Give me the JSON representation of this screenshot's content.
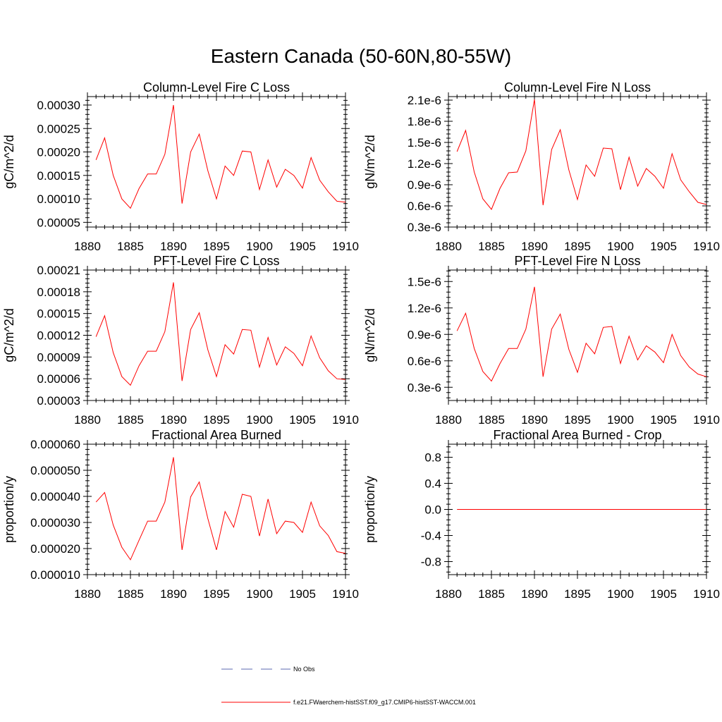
{
  "title": "Eastern Canada (50-60N,80-55W)",
  "colors": {
    "series": "#ff0000",
    "no_obs": "#5b6ab0",
    "axis": "#000000"
  },
  "legend": {
    "no_obs": "No Obs",
    "model": "f.e21.FWaerchem-histSST.f09_g17.CMIP6-histSST-WACCM.001"
  },
  "chart_data": [
    {
      "type": "line",
      "title": "Column-Level Fire C Loss",
      "ylabel": "gC/m^2/d",
      "xlim": [
        1880,
        1910
      ],
      "ylim": [
        4e-05,
        0.000318
      ],
      "xticks": [
        1880,
        1885,
        1890,
        1895,
        1900,
        1905,
        1910
      ],
      "xtick_labels": [
        "1880",
        "1885",
        "1890",
        "1895",
        "1900",
        "1905",
        "1910"
      ],
      "yticks": [
        5e-05,
        0.0001,
        0.00015,
        0.0002,
        0.00025,
        0.0003
      ],
      "ytick_labels": [
        "0.00005",
        "0.00010",
        "0.00015",
        "0.00020",
        "0.00025",
        "0.00030"
      ],
      "series": [
        {
          "x": [
            1881,
            1882,
            1883,
            1884,
            1885,
            1886,
            1887,
            1888,
            1889,
            1890,
            1891,
            1892,
            1893,
            1894,
            1895,
            1896,
            1897,
            1898,
            1899,
            1900,
            1901,
            1902,
            1903,
            1904,
            1905,
            1906,
            1907,
            1908,
            1909,
            1910
          ],
          "values": [
            0.000183,
            0.00023,
            0.00015,
            0.0001,
            8e-05,
            0.000122,
            0.000153,
            0.000153,
            0.000195,
            0.0003,
            9e-05,
            0.0002,
            0.000238,
            0.00016,
            0.0001,
            0.00017,
            0.00015,
            0.000202,
            0.0002,
            0.00012,
            0.000183,
            0.000125,
            0.000163,
            0.00015,
            0.000123,
            0.000188,
            0.00014,
            0.000115,
            9.5e-05,
            9.3e-05
          ]
        }
      ]
    },
    {
      "type": "line",
      "title": "Column-Level Fire N Loss",
      "ylabel": "gN/m^2/d",
      "xlim": [
        1880,
        1910
      ],
      "ylim": [
        3e-07,
        2.15e-06
      ],
      "xticks": [
        1880,
        1885,
        1890,
        1895,
        1900,
        1905,
        1910
      ],
      "xtick_labels": [
        "1880",
        "1885",
        "1890",
        "1895",
        "1900",
        "1905",
        "1910"
      ],
      "yticks": [
        3e-07,
        6e-07,
        9e-07,
        1.2e-06,
        1.5e-06,
        1.8e-06,
        2.1e-06
      ],
      "ytick_labels": [
        "0.3e-6",
        "0.6e-6",
        "0.9e-6",
        "1.2e-6",
        "1.5e-6",
        "1.8e-6",
        "2.1e-6"
      ],
      "series": [
        {
          "x": [
            1881,
            1882,
            1883,
            1884,
            1885,
            1886,
            1887,
            1888,
            1889,
            1890,
            1891,
            1892,
            1893,
            1894,
            1895,
            1896,
            1897,
            1898,
            1899,
            1900,
            1901,
            1902,
            1903,
            1904,
            1905,
            1906,
            1907,
            1908,
            1909,
            1910
          ],
          "values": [
            1.37e-06,
            1.67e-06,
            1.08e-06,
            7e-07,
            5.5e-07,
            8.5e-07,
            1.07e-06,
            1.08e-06,
            1.38e-06,
            2.11e-06,
            6.1e-07,
            1.4e-06,
            1.68e-06,
            1.11e-06,
            6.9e-07,
            1.18e-06,
            1.02e-06,
            1.42e-06,
            1.41e-06,
            8.3e-07,
            1.29e-06,
            8.8e-07,
            1.13e-06,
            1.02e-06,
            8.5e-07,
            1.34e-06,
            9.7e-07,
            8e-07,
            6.5e-07,
            6.2e-07
          ]
        }
      ]
    },
    {
      "type": "line",
      "title": "PFT-Level Fire C Loss",
      "ylabel": "gC/m^2/d",
      "xlim": [
        1880,
        1910
      ],
      "ylim": [
        3e-05,
        0.00021
      ],
      "xticks": [
        1880,
        1885,
        1890,
        1895,
        1900,
        1905,
        1910
      ],
      "xtick_labels": [
        "1880",
        "1885",
        "1890",
        "1895",
        "1900",
        "1905",
        "1910"
      ],
      "yticks": [
        3e-05,
        6e-05,
        9e-05,
        0.00012,
        0.00015,
        0.00018,
        0.00021
      ],
      "ytick_labels": [
        "0.00003",
        "0.00006",
        "0.00009",
        "0.00012",
        "0.00015",
        "0.00018",
        "0.00021"
      ],
      "series": [
        {
          "x": [
            1881,
            1882,
            1883,
            1884,
            1885,
            1886,
            1887,
            1888,
            1889,
            1890,
            1891,
            1892,
            1893,
            1894,
            1895,
            1896,
            1897,
            1898,
            1899,
            1900,
            1901,
            1902,
            1903,
            1904,
            1905,
            1906,
            1907,
            1908,
            1909,
            1910
          ],
          "values": [
            0.000118,
            0.000147,
            9.6e-05,
            6.3e-05,
            5.1e-05,
            7.8e-05,
            9.8e-05,
            9.8e-05,
            0.000125,
            0.000193,
            5.7e-05,
            0.000128,
            0.000151,
            0.0001,
            6.3e-05,
            0.000107,
            9.4e-05,
            0.000128,
            0.000127,
            7.6e-05,
            0.000117,
            7.9e-05,
            0.000104,
            9.5e-05,
            7.8e-05,
            0.000119,
            8.9e-05,
            7.1e-05,
            6e-05,
            5.9e-05
          ]
        }
      ]
    },
    {
      "type": "line",
      "title": "PFT-Level Fire N Loss",
      "ylabel": "gN/m^2/d",
      "xlim": [
        1880,
        1910
      ],
      "ylim": [
        1.5e-07,
        1.63e-06
      ],
      "xticks": [
        1880,
        1885,
        1890,
        1895,
        1900,
        1905,
        1910
      ],
      "xtick_labels": [
        "1880",
        "1885",
        "1890",
        "1895",
        "1900",
        "1905",
        "1910"
      ],
      "yticks": [
        3e-07,
        6e-07,
        9e-07,
        1.2e-06,
        1.5e-06
      ],
      "ytick_labels": [
        "0.3e-6",
        "0.6e-6",
        "0.9e-6",
        "1.2e-6",
        "1.5e-6"
      ],
      "series": [
        {
          "x": [
            1881,
            1882,
            1883,
            1884,
            1885,
            1886,
            1887,
            1888,
            1889,
            1890,
            1891,
            1892,
            1893,
            1894,
            1895,
            1896,
            1897,
            1898,
            1899,
            1900,
            1901,
            1902,
            1903,
            1904,
            1905,
            1906,
            1907,
            1908,
            1909,
            1910
          ],
          "values": [
            9.4e-07,
            1.14e-06,
            7.4e-07,
            4.8e-07,
            3.7e-07,
            5.7e-07,
            7.4e-07,
            7.4e-07,
            9.6e-07,
            1.44e-06,
            4.2e-07,
            9.6e-07,
            1.13e-06,
            7.3e-07,
            4.7e-07,
            8e-07,
            6.8e-07,
            9.8e-07,
            9.9e-07,
            5.7e-07,
            8.8e-07,
            6.1e-07,
            7.7e-07,
            7e-07,
            5.8e-07,
            9e-07,
            6.6e-07,
            5.3e-07,
            4.5e-07,
            4.2e-07
          ]
        }
      ]
    },
    {
      "type": "line",
      "title": "Fractional Area Burned",
      "ylabel": "proportion/y",
      "xlim": [
        1880,
        1910
      ],
      "ylim": [
        1e-05,
        6e-05
      ],
      "xticks": [
        1880,
        1885,
        1890,
        1895,
        1900,
        1905,
        1910
      ],
      "xtick_labels": [
        "1880",
        "1885",
        "1890",
        "1895",
        "1900",
        "1905",
        "1910"
      ],
      "yticks": [
        1e-05,
        2e-05,
        3e-05,
        4e-05,
        5e-05,
        6e-05
      ],
      "ytick_labels": [
        "0.000010",
        "0.000020",
        "0.000030",
        "0.000040",
        "0.000050",
        "0.000060"
      ],
      "series": [
        {
          "x": [
            1881,
            1882,
            1883,
            1884,
            1885,
            1886,
            1887,
            1888,
            1889,
            1890,
            1891,
            1892,
            1893,
            1894,
            1895,
            1896,
            1897,
            1898,
            1899,
            1900,
            1901,
            1902,
            1903,
            1904,
            1905,
            1906,
            1907,
            1908,
            1909,
            1910
          ],
          "values": [
            3.78e-05,
            4.15e-05,
            2.9e-05,
            2.05e-05,
            1.57e-05,
            2.32e-05,
            3.05e-05,
            3.05e-05,
            3.78e-05,
            5.5e-05,
            1.95e-05,
            3.98e-05,
            4.55e-05,
            3.15e-05,
            1.95e-05,
            3.42e-05,
            2.82e-05,
            4.08e-05,
            4e-05,
            2.48e-05,
            3.9e-05,
            2.57e-05,
            3.05e-05,
            3e-05,
            2.62e-05,
            3.78e-05,
            2.87e-05,
            2.5e-05,
            1.88e-05,
            1.82e-05
          ]
        }
      ]
    },
    {
      "type": "line",
      "title": "Fractional Area Burned - Crop",
      "ylabel": "proportion/y",
      "xlim": [
        1880,
        1910
      ],
      "ylim": [
        -1.0,
        1.0
      ],
      "xticks": [
        1880,
        1885,
        1890,
        1895,
        1900,
        1905,
        1910
      ],
      "xtick_labels": [
        "1880",
        "1885",
        "1890",
        "1895",
        "1900",
        "1905",
        "1910"
      ],
      "yticks": [
        -0.8,
        -0.4,
        0.0,
        0.4,
        0.8
      ],
      "ytick_labels": [
        "-0.8",
        "-0.4",
        "0.0",
        "0.4",
        "0.8"
      ],
      "series": [
        {
          "x": [
            1881,
            1882,
            1883,
            1884,
            1885,
            1886,
            1887,
            1888,
            1889,
            1890,
            1891,
            1892,
            1893,
            1894,
            1895,
            1896,
            1897,
            1898,
            1899,
            1900,
            1901,
            1902,
            1903,
            1904,
            1905,
            1906,
            1907,
            1908,
            1909,
            1910
          ],
          "values": [
            0,
            0,
            0,
            0,
            0,
            0,
            0,
            0,
            0,
            0,
            0,
            0,
            0,
            0,
            0,
            0,
            0,
            0,
            0,
            0,
            0,
            0,
            0,
            0,
            0,
            0,
            0,
            0,
            0,
            0
          ]
        }
      ]
    }
  ]
}
